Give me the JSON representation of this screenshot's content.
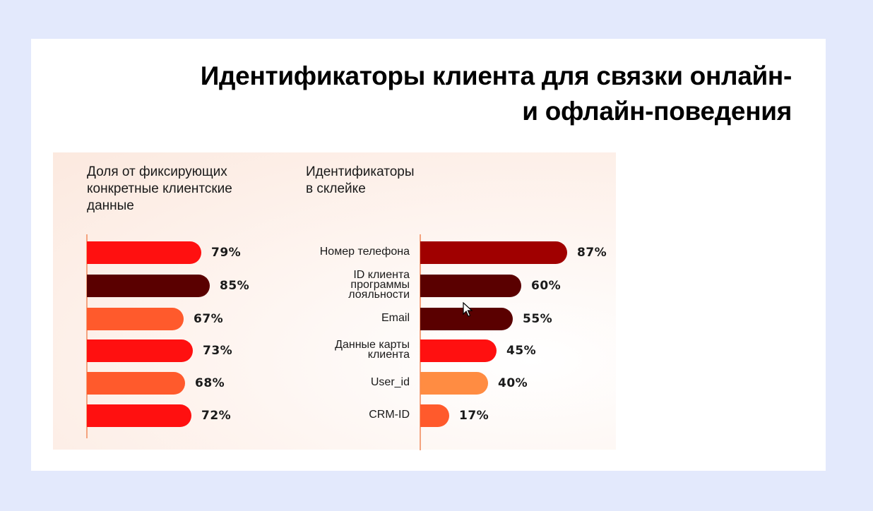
{
  "slide": {
    "title_line1": "Идентификаторы клиента для связки онлайн-",
    "title_line2": "и офлайн-поведения"
  },
  "colors": {
    "page_bg": "#E3E9FC",
    "card_bg": "#FFFFFF",
    "red": "#FF1010",
    "dark_maroon": "#5A0000",
    "crimson": "#A00000",
    "orange": "#FF5A2C",
    "light_orange": "#FF8C42",
    "axis": "#F4A37E"
  },
  "chart_data": [
    {
      "type": "bar",
      "orientation": "horizontal",
      "title": "Доля от фиксирующих конкретные клиентские данные",
      "title_lines": [
        "Доля от фиксирующих",
        "конкретные клиентские",
        "данные"
      ],
      "categories": [
        "",
        "",
        "",
        "",
        "",
        ""
      ],
      "values": [
        79,
        85,
        67,
        73,
        68,
        72
      ],
      "labels": [
        "79%",
        "85%",
        "67%",
        "73%",
        "68%",
        "72%"
      ],
      "bar_colors": [
        "#FF1010",
        "#5A0000",
        "#FF5A2C",
        "#FF1010",
        "#FF5A2C",
        "#FF1010"
      ],
      "unit": "%",
      "grid": false,
      "xlim": [
        0,
        100
      ]
    },
    {
      "type": "bar",
      "orientation": "horizontal",
      "title": "Идентификаторы в склейке",
      "title_lines": [
        "Идентификаторы",
        "в склейке"
      ],
      "categories": [
        "Номер телефона",
        "ID клиента программы лояльности",
        "Email",
        "Данные карты клиента",
        "User_id",
        "CRM-ID"
      ],
      "category_lines": [
        [
          "Номер телефона"
        ],
        [
          "ID клиента",
          "программы",
          "лояльности"
        ],
        [
          "Email"
        ],
        [
          "Данные карты",
          "клиента"
        ],
        [
          "User_id"
        ],
        [
          "CRM-ID"
        ]
      ],
      "values": [
        87,
        60,
        55,
        45,
        40,
        17
      ],
      "labels": [
        "87%",
        "60%",
        "55%",
        "45%",
        "40%",
        "17%"
      ],
      "bar_colors": [
        "#A00000",
        "#5A0000",
        "#5A0000",
        "#FF1010",
        "#FF8C42",
        "#FF5A2C"
      ],
      "unit": "%",
      "grid": false,
      "xlim": [
        0,
        100
      ]
    }
  ]
}
